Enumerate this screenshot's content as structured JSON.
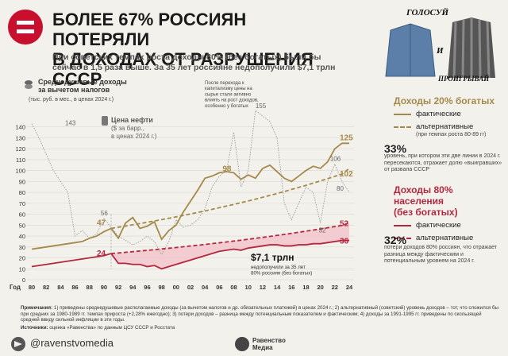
{
  "header": {
    "title_line1": "БОЛЕЕ 67% РОССИЯН ПОТЕРЯЛИ",
    "title_line2": "В ДОХОДАХ ОТ РАЗРУШЕНИЯ СССР",
    "subtitle_line1": "При советских темпах роста доходы 80% (без богатых) были бы",
    "subtitle_line2": "сейчас в 1,5 раза выше. За 35 лет россияне недополучили $7,1 трлн"
  },
  "promo": {
    "line1": "ГОЛОСУЙ",
    "line2": "И",
    "line3": "ПРОИГРЫВАЙ"
  },
  "colors": {
    "gold": "#a4894a",
    "red": "#b2283f",
    "oil": "#9a9a9a",
    "fill": "#f2c6cd",
    "bg": "#f3f1ec"
  },
  "chart_data": {
    "type": "line",
    "xlabel": "Год",
    "x": [
      1980,
      1981,
      1982,
      1983,
      1984,
      1985,
      1986,
      1987,
      1988,
      1989,
      1990,
      1991,
      1992,
      1993,
      1994,
      1995,
      1996,
      1997,
      1998,
      1999,
      2000,
      2001,
      2002,
      2003,
      2004,
      2005,
      2006,
      2007,
      2008,
      2009,
      2010,
      2011,
      2012,
      2013,
      2014,
      2015,
      2016,
      2017,
      2018,
      2019,
      2020,
      2021,
      2022,
      2023,
      2024
    ],
    "xticks": [
      "80",
      "82",
      "84",
      "86",
      "88",
      "90",
      "92",
      "94",
      "96",
      "98",
      "00",
      "02",
      "04",
      "06",
      "08",
      "10",
      "12",
      "14",
      "16",
      "18",
      "20",
      "22",
      "24"
    ],
    "ylim": [
      0,
      150
    ],
    "yticks": [
      0,
      10,
      20,
      30,
      40,
      50,
      60,
      70,
      80,
      90,
      100,
      110,
      120,
      130,
      140
    ],
    "y_axis_title": "Среднедушевые доходы за вычетом налогов",
    "y_axis_unit": "(тыс. руб. в мес., в ценах 2024 г.)",
    "oil_axis_title": "Цена нефти",
    "oil_axis_unit": "($ за барр., в ценах 2024 г.)",
    "series": [
      {
        "name": "Доходы 20% богатых — фактические",
        "color": "#a4894a",
        "dash": false,
        "values": [
          28,
          29,
          30,
          31,
          32,
          33,
          34,
          35,
          38,
          40,
          44,
          47,
          38,
          52,
          57,
          47,
          49,
          53,
          37,
          45,
          50,
          62,
          72,
          82,
          93,
          95,
          98,
          99,
          98,
          92,
          96,
          93,
          102,
          105,
          99,
          93,
          90,
          95,
          100,
          104,
          102,
          108,
          120,
          125,
          125
        ]
      },
      {
        "name": "Доходы 20% богатых — альтернативные",
        "color": "#a4894a",
        "dash": true,
        "values": [
          null,
          null,
          null,
          null,
          null,
          null,
          null,
          null,
          null,
          null,
          null,
          47,
          48.1,
          49.2,
          50.3,
          51.5,
          52.6,
          53.8,
          55.1,
          56.3,
          57.6,
          58.9,
          60.3,
          61.6,
          63,
          64.5,
          66,
          67.5,
          69,
          70.6,
          72.2,
          73.8,
          75.5,
          77.3,
          79,
          80.8,
          82.7,
          84.6,
          86.5,
          88.5,
          90.5,
          92.6,
          94.7,
          96.8,
          102
        ]
      },
      {
        "name": "Доходы 80% населения — фактические",
        "color": "#b2283f",
        "dash": false,
        "values": [
          12,
          13,
          14,
          15,
          16,
          17,
          18,
          19,
          20,
          21,
          22,
          24,
          15,
          15,
          14,
          14,
          12,
          13,
          10,
          12,
          14,
          16,
          18,
          20,
          22,
          24,
          26,
          27,
          28,
          27,
          29,
          30,
          31,
          32,
          32,
          31,
          31,
          32,
          32,
          33,
          33,
          34,
          35,
          36,
          36
        ]
      },
      {
        "name": "Доходы 80% населения — альтернативные",
        "color": "#b2283f",
        "dash": true,
        "values": [
          null,
          null,
          null,
          null,
          null,
          null,
          null,
          null,
          null,
          null,
          null,
          24,
          24.5,
          25.1,
          25.7,
          26.3,
          26.9,
          27.5,
          28.2,
          28.8,
          29.5,
          30.2,
          30.9,
          31.6,
          32.3,
          33.1,
          33.8,
          34.6,
          35.4,
          36.2,
          37.1,
          37.9,
          38.8,
          39.7,
          40.6,
          41.5,
          42.5,
          43.5,
          44.5,
          45.5,
          46.5,
          47.6,
          48.7,
          49.8,
          52
        ]
      },
      {
        "name": "Цена нефти",
        "color": "#9a9a9a",
        "dash": "dotted",
        "values": [
          143,
          130,
          115,
          100,
          90,
          80,
          40,
          45,
          38,
          42,
          56,
          48,
          40,
          36,
          32,
          35,
          40,
          35,
          23,
          35,
          55,
          48,
          50,
          55,
          65,
          85,
          95,
          100,
          135,
          85,
          100,
          155,
          150,
          145,
          130,
          70,
          55,
          70,
          85,
          80,
          52,
          90,
          106,
          90,
          80
        ]
      }
    ],
    "annotations": {
      "rich_end": "125",
      "rich_alt_end": "102",
      "rich_start": "47",
      "rich_peak": "98",
      "poor_end": "36",
      "poor_alt_end": "52",
      "poor_start": "24",
      "oil_peak1": "143",
      "oil_peak2": "155",
      "oil_1990": "56",
      "oil_2020": "52",
      "oil_2022": "106",
      "oil_2024": "80",
      "capitalism_note": [
        "После перехода к",
        "капитализму цены на",
        "сырье стали активно",
        "влиять на рост доходов,",
        "особенно у богатых"
      ],
      "gap_value": "$7,1 трлн",
      "gap_note": [
        "недополучили за 35 лет",
        "80% россиян (без богатых)"
      ]
    }
  },
  "right_panel": {
    "rich_title": "Доходы 20% богатых",
    "rich_actual": "фактические",
    "rich_alt": "альтернативные",
    "rich_alt_note": "(при темпах роста 80-89 гг)",
    "pct1": "33%",
    "pct1_note": "уровень, при котором эти две линии в 2024 г. пересекаются, отражает долю «выигравших» от развала СССР",
    "poor_title_1": "Доходы 80% населения",
    "poor_title_2": "(без богатых)",
    "poor_actual": "фактические",
    "poor_alt": "альтернативные",
    "pct2": "32%",
    "pct2_note": "потери доходов 80% россиян, что отражает разница между фактическим и потенциальным уровнем на 2024 г."
  },
  "notes": {
    "label": "Примечания:",
    "text": "1) приведены среднедушевые располагаемые доходы (за вычетом налогов и др. обязательных платежей) в ценах 2024 г.; 2) альтернативный (советский) уровень доходов – тот, что сложился бы при средних за 1980-1989 гг. темпах прироста (+2,28% ежегодно); 3) потери доходов – разница между потенциальным показателем и фактическим; 4) доходы за 1991-1995 гг. приведены по скользящей средней ввиду сильной инфляции в эти годы.",
    "source_label": "Источники:",
    "source_text": "оценка «Равенства» по данным ЦСУ СССР и Росстата"
  },
  "footer": {
    "handle": "@ravenstvomedia",
    "brand_line1": "Равенство",
    "brand_line2": "Медиа"
  }
}
